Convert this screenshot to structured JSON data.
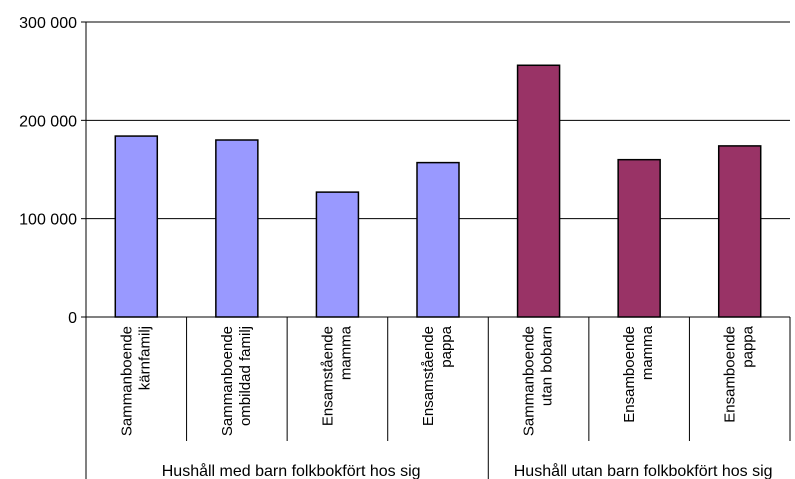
{
  "chart_data": {
    "type": "bar",
    "categories": [
      [
        "Sammanboende",
        "kärnfamilj"
      ],
      [
        "Sammanboende",
        "ombildad familj"
      ],
      [
        "Ensamstående",
        "mamma"
      ],
      [
        "Ensamstående",
        "pappa"
      ],
      [
        "Sammanboende",
        "utan bobarn"
      ],
      [
        "Ensamboende",
        "mamma"
      ],
      [
        "Ensamboende",
        "pappa"
      ]
    ],
    "values": [
      184000,
      180000,
      127000,
      157000,
      256000,
      160000,
      174000
    ],
    "bar_colors": [
      "#9999ff",
      "#9999ff",
      "#9999ff",
      "#9999ff",
      "#993366",
      "#993366",
      "#993366"
    ],
    "groups": [
      {
        "label": "Hushåll med barn folkbokfört hos sig",
        "categories": 4
      },
      {
        "label": "Hushåll utan barn folkbokfört hos sig",
        "categories": 3
      }
    ],
    "y_ticks": [
      0,
      100000,
      200000,
      300000
    ],
    "y_tick_labels": [
      "0",
      "100 000",
      "200 000",
      "300 000"
    ],
    "ylim": [
      0,
      300000
    ],
    "grid": true,
    "legend": false,
    "title": "",
    "xlabel": "",
    "ylabel": ""
  }
}
